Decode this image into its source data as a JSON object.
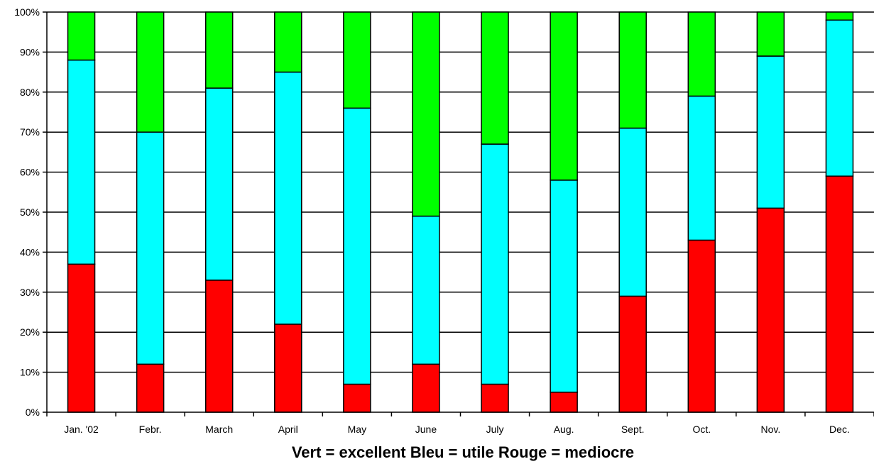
{
  "chart_data": {
    "type": "bar",
    "stacked": true,
    "title": "",
    "xlabel": "Vert = excellent  Bleu = utile  Rouge = mediocre",
    "ylabel": "",
    "ylim": [
      0,
      100
    ],
    "y_ticks": [
      "0%",
      "10%",
      "20%",
      "30%",
      "40%",
      "50%",
      "60%",
      "70%",
      "80%",
      "90%",
      "100%"
    ],
    "grid": true,
    "legend": "none",
    "categories": [
      "Jan. '02",
      "Febr.",
      "March",
      "April",
      "May",
      "June",
      "July",
      "Aug.",
      "Sept.",
      "Oct.",
      "Nov.",
      "Dec."
    ],
    "series": [
      {
        "color": "#ff0000",
        "values": [
          37,
          12,
          33,
          22,
          7,
          12,
          7,
          5,
          29,
          43,
          51,
          59
        ]
      },
      {
        "color": "#00ffff",
        "values": [
          51,
          58,
          48,
          63,
          69,
          37,
          60,
          53,
          42,
          36,
          38,
          39
        ]
      },
      {
        "color": "#00ff00",
        "values": [
          12,
          30,
          19,
          15,
          24,
          51,
          33,
          42,
          29,
          21,
          11,
          2
        ]
      }
    ]
  }
}
